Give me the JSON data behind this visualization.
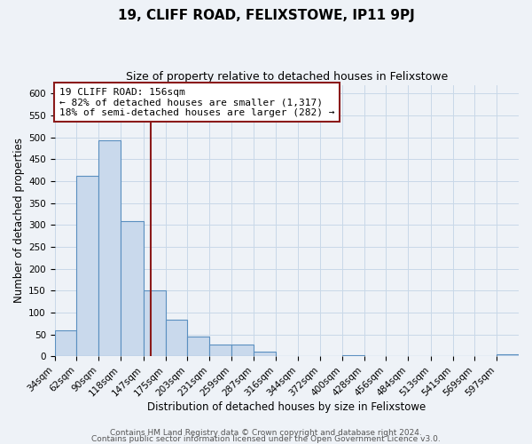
{
  "title": "19, CLIFF ROAD, FELIXSTOWE, IP11 9PJ",
  "subtitle": "Size of property relative to detached houses in Felixstowe",
  "xlabel": "Distribution of detached houses by size in Felixstowe",
  "ylabel": "Number of detached properties",
  "bin_labels": [
    "34sqm",
    "62sqm",
    "90sqm",
    "118sqm",
    "147sqm",
    "175sqm",
    "203sqm",
    "231sqm",
    "259sqm",
    "287sqm",
    "316sqm",
    "344sqm",
    "372sqm",
    "400sqm",
    "428sqm",
    "456sqm",
    "484sqm",
    "513sqm",
    "541sqm",
    "569sqm",
    "597sqm"
  ],
  "bin_edges": [
    34,
    62,
    90,
    118,
    147,
    175,
    203,
    231,
    259,
    287,
    316,
    344,
    372,
    400,
    428,
    456,
    484,
    513,
    541,
    569,
    597
  ],
  "bar_heights": [
    60,
    413,
    493,
    308,
    151,
    83,
    46,
    27,
    27,
    10,
    0,
    0,
    0,
    3,
    0,
    0,
    0,
    0,
    0,
    0,
    4
  ],
  "bar_color": "#c9d9ec",
  "bar_edge_color": "#5a8fc0",
  "vline_x": 156,
  "vline_color": "#8b1a1a",
  "annotation_line1": "19 CLIFF ROAD: 156sqm",
  "annotation_line2": "← 82% of detached houses are smaller (1,317)",
  "annotation_line3": "18% of semi-detached houses are larger (282) →",
  "annotation_box_color": "#ffffff",
  "annotation_box_edge": "#8b1a1a",
  "ylim": [
    0,
    620
  ],
  "yticks": [
    0,
    50,
    100,
    150,
    200,
    250,
    300,
    350,
    400,
    450,
    500,
    550,
    600
  ],
  "grid_color": "#c8d8e8",
  "bg_color": "#eef2f7",
  "footer_line1": "Contains HM Land Registry data © Crown copyright and database right 2024.",
  "footer_line2": "Contains public sector information licensed under the Open Government Licence v3.0.",
  "title_fontsize": 11,
  "subtitle_fontsize": 9,
  "axis_label_fontsize": 8.5,
  "tick_fontsize": 7.5,
  "annotation_fontsize": 8,
  "footer_fontsize": 6.5
}
